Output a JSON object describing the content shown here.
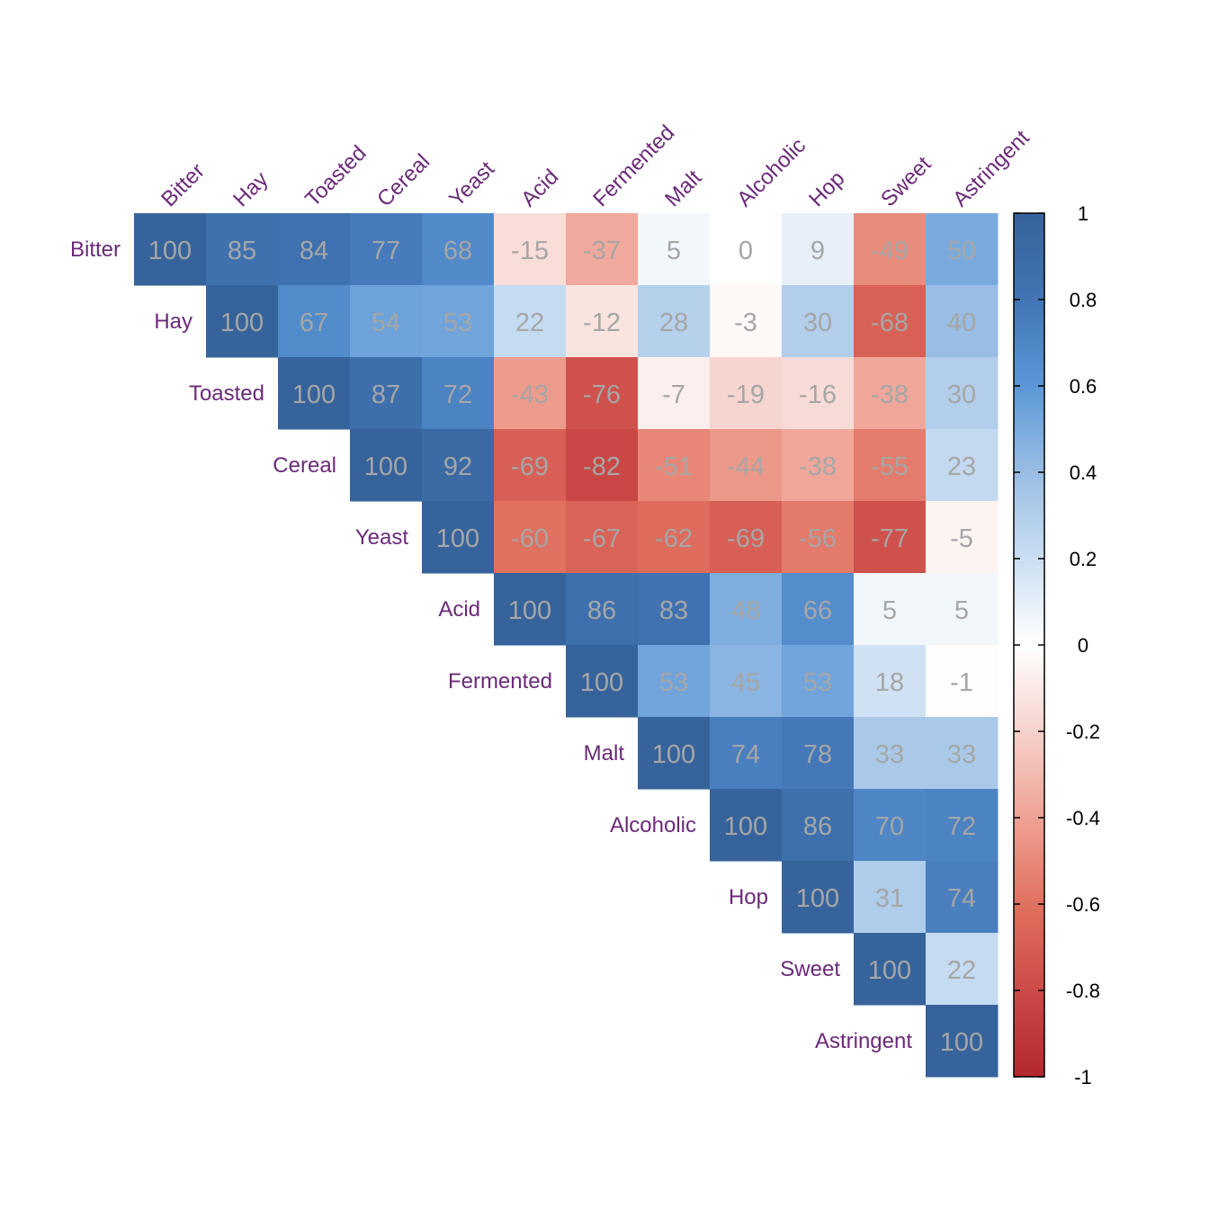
{
  "chart_data": {
    "type": "heatmap",
    "variables": [
      "Bitter",
      "Hay",
      "Toasted",
      "Cereal",
      "Yeast",
      "Acid",
      "Fermented",
      "Malt",
      "Alcoholic",
      "Hop",
      "Sweet",
      "Astringent"
    ],
    "matrix": [
      [
        100,
        85,
        84,
        77,
        68,
        -15,
        -37,
        5,
        0,
        9,
        -49,
        50
      ],
      [
        null,
        100,
        67,
        54,
        53,
        22,
        -12,
        28,
        -3,
        30,
        -68,
        40
      ],
      [
        null,
        null,
        100,
        87,
        72,
        -43,
        -76,
        -7,
        -19,
        -16,
        -38,
        30
      ],
      [
        null,
        null,
        null,
        100,
        92,
        -69,
        -82,
        -51,
        -44,
        -38,
        -55,
        23
      ],
      [
        null,
        null,
        null,
        null,
        100,
        -60,
        -67,
        -62,
        -69,
        -56,
        -77,
        -5
      ],
      [
        null,
        null,
        null,
        null,
        null,
        100,
        86,
        83,
        48,
        66,
        5,
        5
      ],
      [
        null,
        null,
        null,
        null,
        null,
        null,
        100,
        53,
        45,
        53,
        18,
        -1
      ],
      [
        null,
        null,
        null,
        null,
        null,
        null,
        null,
        100,
        74,
        78,
        33,
        33
      ],
      [
        null,
        null,
        null,
        null,
        null,
        null,
        null,
        null,
        100,
        86,
        70,
        72
      ],
      [
        null,
        null,
        null,
        null,
        null,
        null,
        null,
        null,
        null,
        100,
        31,
        74
      ],
      [
        null,
        null,
        null,
        null,
        null,
        null,
        null,
        null,
        null,
        null,
        100,
        22
      ],
      [
        null,
        null,
        null,
        null,
        null,
        null,
        null,
        null,
        null,
        null,
        null,
        100
      ]
    ],
    "colorbar": {
      "ticks": [
        "1",
        "0.8",
        "0.6",
        "0.4",
        "0.2",
        "0",
        "-0.2",
        "-0.4",
        "-0.6",
        "-0.8",
        "-1"
      ],
      "range": [
        -1,
        1
      ]
    },
    "colors": {
      "negative": "#b2282e",
      "neutral": "#ffffff",
      "positive": "#36639b",
      "label": "#6b2a78",
      "cell_text": "#a6a6a6",
      "axis": "#000000"
    }
  }
}
